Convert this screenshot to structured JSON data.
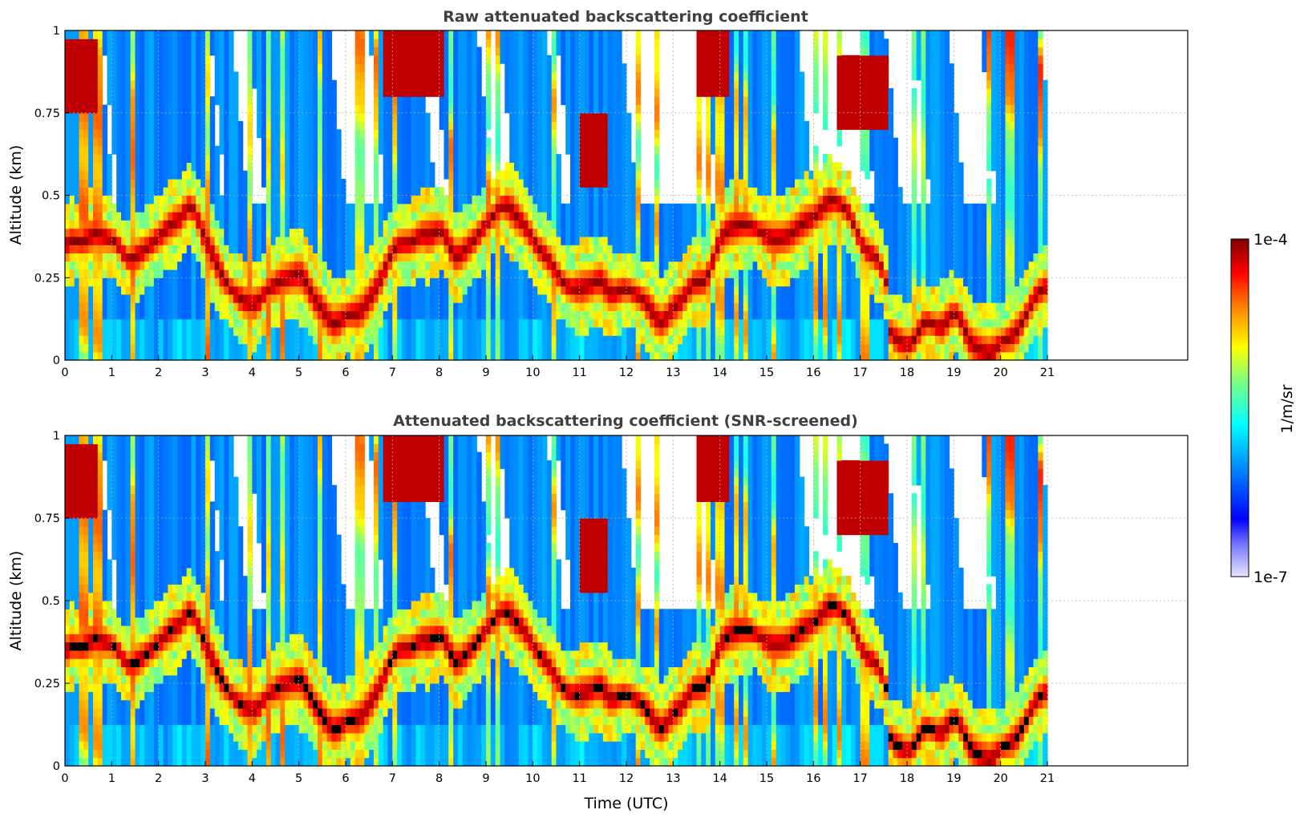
{
  "chart_data": [
    {
      "type": "heatmap",
      "title": "Raw attenuated backscattering coefficient",
      "xlabel": "",
      "ylabel": "Altitude (km)",
      "xlim": [
        0,
        24
      ],
      "ylim": [
        0,
        1
      ],
      "x_ticks": [
        "0",
        "1",
        "2",
        "3",
        "4",
        "5",
        "6",
        "7",
        "8",
        "9",
        "10",
        "11",
        "12",
        "13",
        "14",
        "15",
        "16",
        "17",
        "18",
        "19",
        "20",
        "21"
      ],
      "y_ticks": [
        "0",
        "0.25",
        "0.5",
        "0.75",
        "1"
      ],
      "y_tick_values": [
        0,
        0.25,
        0.5,
        0.75,
        1
      ],
      "grid": true,
      "data_end_time": 21,
      "screened": false
    },
    {
      "type": "heatmap",
      "title": "Attenuated backscattering coefficient (SNR-screened)",
      "xlabel": "Time (UTC)",
      "ylabel": "Altitude (km)",
      "xlim": [
        0,
        24
      ],
      "ylim": [
        0,
        1
      ],
      "x_ticks": [
        "0",
        "1",
        "2",
        "3",
        "4",
        "5",
        "6",
        "7",
        "8",
        "9",
        "10",
        "11",
        "12",
        "13",
        "14",
        "15",
        "16",
        "17",
        "18",
        "19",
        "20",
        "21"
      ],
      "y_ticks": [
        "0",
        "0.25",
        "0.5",
        "0.75",
        "1"
      ],
      "y_tick_values": [
        0,
        0.25,
        0.5,
        0.75,
        1
      ],
      "grid": true,
      "data_end_time": 21,
      "screened": true
    }
  ],
  "colorbar": {
    "label": "1/m/sr",
    "max_label": "1e-4",
    "min_label": "1e-7",
    "scale": "log",
    "colormap": "jet"
  }
}
